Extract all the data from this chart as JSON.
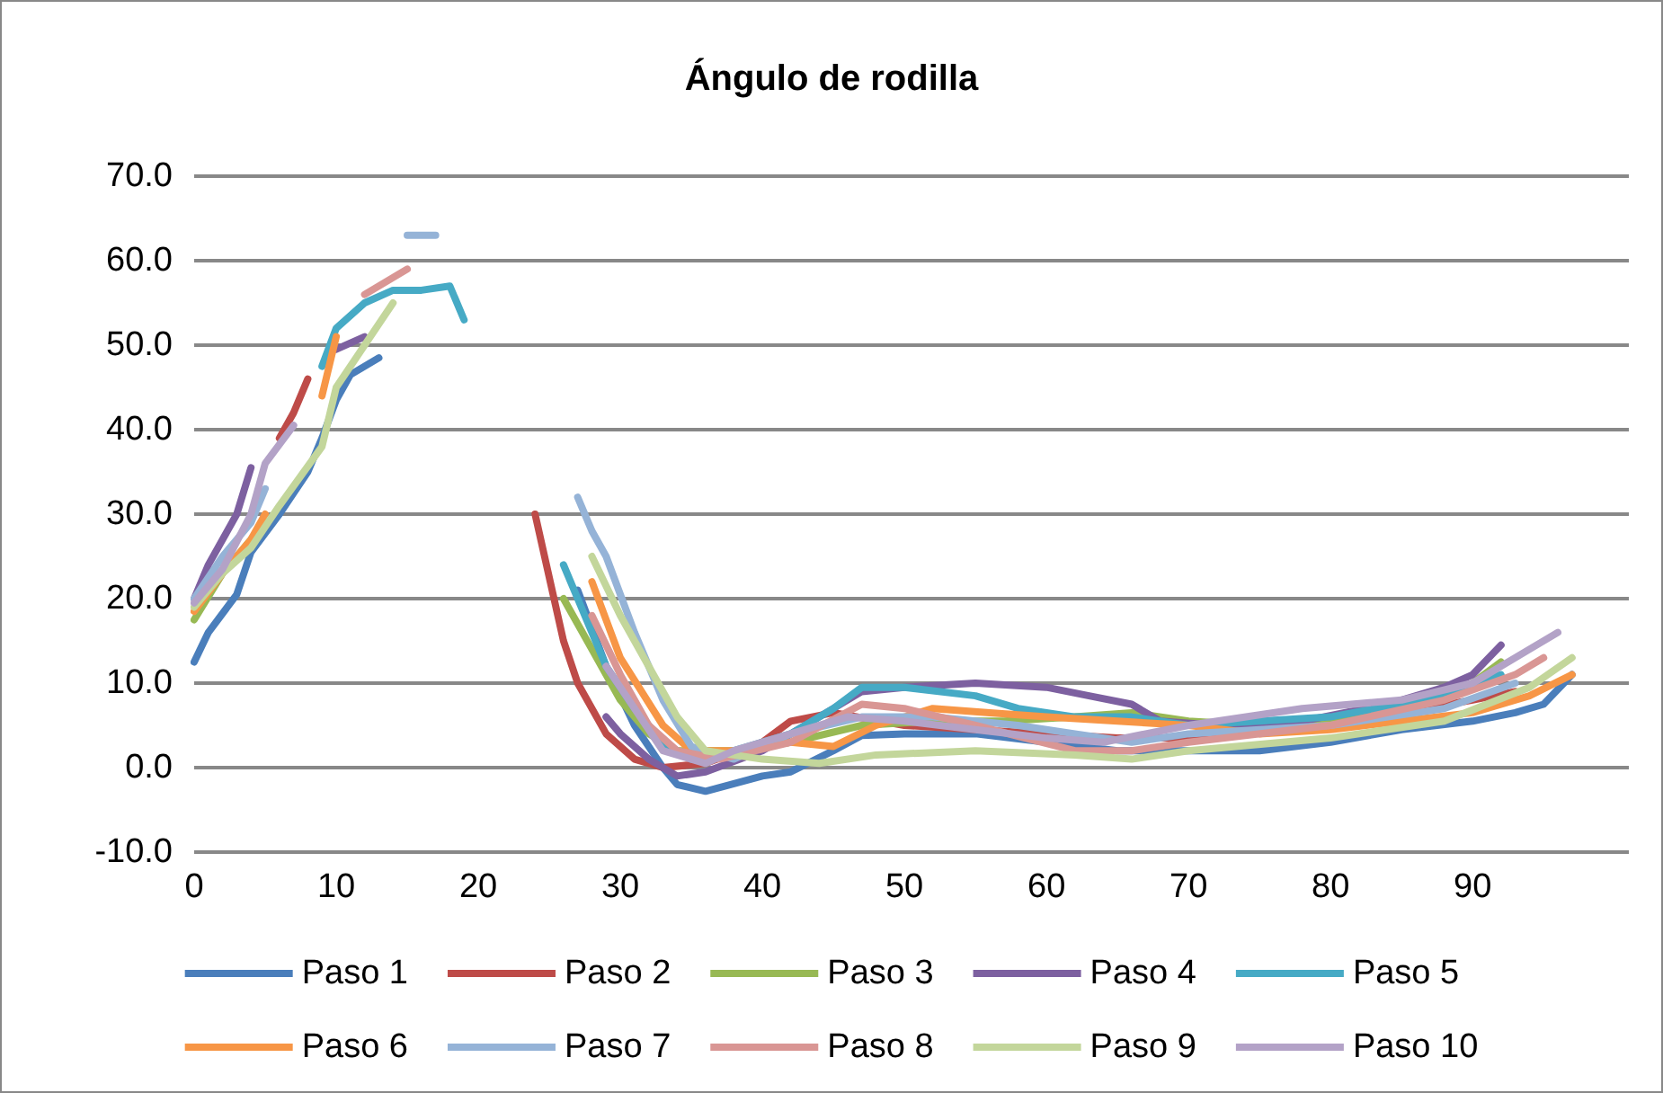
{
  "chart_data": {
    "type": "line",
    "title": "Ángulo de rodilla",
    "xlim": [
      0,
      101
    ],
    "xticks": [
      0,
      10,
      20,
      30,
      40,
      50,
      60,
      70,
      80,
      90
    ],
    "ylim": [
      -10,
      70
    ],
    "yticks": [
      {
        "value": -10,
        "label": "-10.0"
      },
      {
        "value": 0,
        "label": "0.0"
      },
      {
        "value": 10,
        "label": "10.0"
      },
      {
        "value": 20,
        "label": "20.0"
      },
      {
        "value": 30,
        "label": "30.0"
      },
      {
        "value": 40,
        "label": "40.0"
      },
      {
        "value": 50,
        "label": "50.0"
      },
      {
        "value": 60,
        "label": "60.0"
      },
      {
        "value": 70,
        "label": "70.0"
      }
    ],
    "grid": "y",
    "legend": "bottom",
    "marker": "none",
    "line_style": "solid",
    "series": [
      {
        "name": "Paso 1",
        "color": "#4a7ebb",
        "x": [
          0,
          1,
          3,
          4,
          6,
          8,
          9,
          10,
          11,
          13,
          20,
          27,
          29,
          31,
          33,
          34,
          36,
          40,
          42,
          45,
          47,
          50,
          55,
          60,
          65,
          70,
          75,
          80,
          85,
          90,
          93,
          95,
          97
        ],
        "values": [
          12.5,
          16,
          20.5,
          25.5,
          30,
          35,
          39,
          43.5,
          46.5,
          48.5,
          null,
          21,
          12,
          5,
          0,
          -2,
          -2.8,
          -1,
          -0.5,
          2,
          3.8,
          4,
          4,
          3,
          2,
          2,
          2,
          3,
          4.5,
          5.5,
          6.5,
          7.5,
          11
        ]
      },
      {
        "name": "Paso 2",
        "color": "#be4b48",
        "x": [
          6,
          7,
          8,
          15,
          24,
          26,
          27,
          29,
          31,
          33,
          36,
          40,
          42,
          45,
          50,
          55,
          60,
          65,
          70,
          80,
          90,
          93
        ],
        "values": [
          39,
          42,
          46,
          null,
          30,
          15,
          10,
          4,
          1,
          0,
          0.5,
          3,
          5.5,
          6.5,
          5,
          4.5,
          4,
          3.5,
          3.5,
          5,
          8,
          9
        ]
      },
      {
        "name": "Paso 3",
        "color": "#98b954",
        "x": [
          0,
          2,
          4,
          5,
          15,
          26,
          28,
          30,
          32,
          34,
          38,
          42,
          47,
          52,
          57,
          62,
          66,
          70,
          75,
          80,
          85,
          90,
          92
        ],
        "values": [
          17.5,
          23,
          27,
          29,
          null,
          20,
          14,
          8,
          4,
          2,
          2,
          3,
          5,
          5.5,
          5.5,
          6,
          6.5,
          5.5,
          5,
          5.5,
          7,
          10,
          12.5
        ]
      },
      {
        "name": "Paso 4",
        "color": "#7d60a0",
        "x": [
          0,
          1,
          3,
          4,
          7,
          10,
          12,
          20,
          29,
          30,
          32,
          34,
          36,
          40,
          44,
          47,
          50,
          55,
          60,
          63,
          66,
          68,
          72,
          78,
          84,
          88,
          90,
          92
        ],
        "values": [
          20,
          24,
          30,
          35.5,
          null,
          49.5,
          51,
          null,
          6,
          4,
          1,
          -1,
          -0.5,
          2,
          6,
          9,
          9.5,
          10,
          9.5,
          8.5,
          7.5,
          5.5,
          5,
          5.5,
          7.5,
          9.5,
          11,
          14.5
        ]
      },
      {
        "name": "Paso 5",
        "color": "#46aac5",
        "x": [
          9,
          10,
          12,
          14,
          16,
          18,
          19,
          22,
          26,
          27,
          29,
          31,
          33,
          35,
          38,
          42,
          45,
          47,
          50,
          55,
          58,
          62,
          66,
          70,
          80,
          88,
          92
        ],
        "values": [
          47.5,
          52,
          55,
          56.5,
          56.5,
          57,
          53,
          null,
          24,
          20,
          12,
          7,
          3,
          1,
          2,
          4,
          7,
          9.5,
          9.5,
          8.5,
          7,
          6,
          6,
          5,
          6,
          8.5,
          11
        ]
      },
      {
        "name": "Paso 6",
        "color": "#f79646",
        "x": [
          0,
          2,
          4,
          5,
          7,
          9,
          10,
          20,
          28,
          30,
          33,
          35,
          38,
          42,
          45,
          48,
          52,
          56,
          60,
          65,
          70,
          75,
          80,
          85,
          90,
          94,
          97
        ],
        "values": [
          18.5,
          23,
          27,
          30,
          null,
          44,
          51,
          null,
          22,
          13,
          5,
          2,
          2,
          3,
          2.5,
          5,
          7,
          6.5,
          6,
          5.5,
          5,
          4,
          4.5,
          5.5,
          6.5,
          8.5,
          11
        ]
      },
      {
        "name": "Paso 7",
        "color": "#95b3d7",
        "x": [
          0,
          2,
          4,
          5,
          10,
          15,
          17,
          22,
          27,
          28,
          29,
          31,
          33,
          35,
          38,
          42,
          47,
          52,
          58,
          62,
          66,
          70,
          80,
          88,
          93
        ],
        "values": [
          20,
          25,
          29,
          33,
          null,
          63,
          63,
          null,
          32,
          28,
          25,
          16,
          8,
          2.5,
          1,
          4,
          6,
          6,
          5,
          4,
          3,
          4,
          5,
          7,
          10
        ]
      },
      {
        "name": "Paso 8",
        "color": "#d99694",
        "x": [
          12,
          15,
          20,
          28,
          30,
          32,
          34,
          37,
          42,
          47,
          50,
          55,
          62,
          66,
          70,
          80,
          88,
          93,
          95
        ],
        "values": [
          56,
          59,
          null,
          18,
          11,
          5,
          2,
          1,
          3,
          7.5,
          7,
          5,
          2,
          2,
          3,
          5,
          8,
          11,
          13
        ]
      },
      {
        "name": "Paso 9",
        "color": "#c3d69b",
        "x": [
          0,
          2,
          4,
          6,
          9,
          10,
          12,
          14,
          20,
          28,
          30,
          32,
          34,
          36,
          40,
          44,
          48,
          55,
          62,
          66,
          70,
          80,
          88,
          94,
          97
        ],
        "values": [
          19,
          23,
          26,
          31,
          38,
          45,
          50,
          55,
          null,
          25,
          18,
          12,
          6,
          2,
          1,
          0.5,
          1.5,
          2,
          1.5,
          1,
          2,
          3.5,
          5.5,
          9.5,
          13
        ]
      },
      {
        "name": "Paso 10",
        "color": "#b3a2c7",
        "x": [
          0,
          2,
          4,
          5,
          7,
          15,
          29,
          31,
          33,
          36,
          38,
          42,
          46,
          50,
          55,
          60,
          64,
          70,
          78,
          85,
          90,
          94,
          96
        ],
        "values": [
          19.5,
          23.5,
          30,
          36,
          40.5,
          null,
          12,
          7,
          2,
          0.5,
          2,
          4,
          6,
          5.5,
          4.5,
          3.5,
          3,
          5,
          7,
          8,
          10,
          14,
          16
        ]
      }
    ]
  }
}
